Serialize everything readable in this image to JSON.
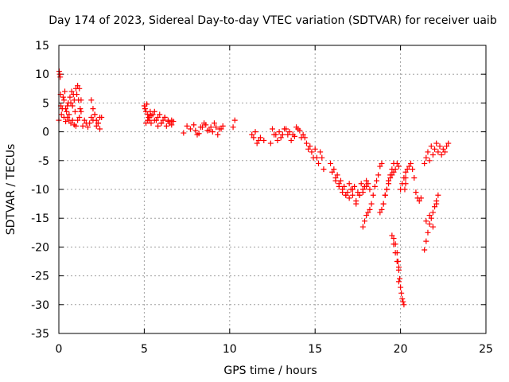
{
  "chart_data": {
    "type": "scatter",
    "title": "Day 174 of 2023, Sidereal Day-to-day VTEC variation (SDTVAR) for receiver uaib",
    "xlabel": "GPS time / hours",
    "ylabel": "SDTVAR / TECUs",
    "xlim": [
      0,
      25
    ],
    "ylim": [
      -35,
      15
    ],
    "xticks": [
      0,
      5,
      10,
      15,
      20,
      25
    ],
    "yticks": [
      -35,
      -30,
      -25,
      -20,
      -15,
      -10,
      -5,
      0,
      5,
      10,
      15
    ],
    "xtick_labels": [
      "0",
      "5",
      "10",
      "15",
      "20",
      "25"
    ],
    "ytick_labels": [
      "-35",
      "-30",
      "-25",
      "-20",
      "-15",
      "-10",
      "-5",
      "0",
      "5",
      "10",
      "15"
    ],
    "grid": true,
    "marker": "+",
    "color": "#ff0000",
    "series": [
      {
        "name": "uaib",
        "x": [
          0.0,
          0.02,
          0.05,
          0.08,
          0.1,
          0.12,
          0.15,
          0.2,
          0.25,
          0.3,
          0.35,
          0.4,
          0.45,
          0.5,
          0.55,
          0.6,
          0.65,
          0.7,
          0.75,
          0.8,
          0.85,
          0.9,
          0.95,
          1.0,
          1.05,
          1.1,
          1.15,
          1.2,
          1.25,
          1.3,
          0.3,
          0.4,
          0.5,
          0.6,
          0.7,
          0.8,
          0.9,
          1.0,
          1.1,
          1.2,
          1.3,
          1.4,
          1.5,
          1.6,
          1.7,
          1.8,
          1.9,
          2.0,
          2.1,
          2.2,
          2.3,
          2.4,
          1.9,
          2.0,
          2.1,
          2.2,
          2.3,
          2.4,
          2.5,
          5.0,
          5.05,
          5.1,
          5.15,
          5.2,
          5.25,
          5.3,
          5.35,
          5.4,
          5.5,
          5.6,
          5.7,
          5.8,
          5.9,
          6.0,
          6.1,
          6.2,
          6.3,
          6.4,
          6.5,
          6.6,
          6.7,
          5.1,
          5.2,
          5.3,
          5.4,
          5.6,
          5.8,
          6.0,
          6.2,
          6.4,
          6.6,
          7.3,
          7.5,
          7.7,
          7.9,
          8.1,
          8.3,
          8.5,
          8.7,
          8.9,
          9.1,
          9.3,
          9.5,
          8.0,
          8.2,
          8.4,
          8.6,
          8.8,
          9.0,
          9.2,
          9.4,
          9.6,
          10.2,
          10.3,
          11.3,
          11.4,
          11.5,
          11.6,
          11.7,
          11.8,
          12.0,
          12.4,
          12.6,
          12.8,
          13.0,
          13.2,
          13.4,
          13.6,
          13.8,
          14.0,
          14.2,
          12.5,
          12.7,
          12.9,
          13.1,
          13.3,
          13.5,
          13.7,
          13.9,
          14.1,
          14.3,
          14.4,
          14.5,
          14.6,
          14.7,
          14.8,
          14.9,
          15.0,
          15.1,
          15.2,
          15.3,
          15.4,
          15.5,
          15.9,
          16.0,
          16.1,
          16.2,
          16.3,
          16.4,
          16.5,
          16.6,
          16.7,
          16.8,
          16.9,
          17.0,
          17.1,
          17.2,
          17.3,
          17.4,
          17.5,
          17.6,
          17.7,
          17.8,
          17.9,
          18.0,
          18.1,
          18.2,
          16.2,
          16.4,
          16.6,
          16.8,
          17.0,
          17.2,
          17.4,
          17.6,
          17.8,
          18.0,
          17.8,
          17.9,
          18.0,
          18.1,
          18.2,
          18.3,
          18.4,
          18.5,
          18.6,
          18.7,
          18.8,
          18.9,
          19.0,
          19.1,
          19.2,
          19.3,
          19.4,
          19.5,
          19.6,
          18.8,
          18.9,
          19.0,
          19.1,
          19.2,
          19.3,
          19.4,
          19.5,
          19.6,
          19.7,
          19.8,
          19.9,
          19.5,
          19.6,
          19.7,
          19.8,
          19.9,
          20.0,
          20.1,
          20.2,
          20.3,
          20.4,
          20.5,
          20.6,
          20.7,
          20.8,
          20.9,
          21.0,
          21.1,
          21.2,
          19.6,
          19.7,
          19.8,
          19.85,
          19.9,
          19.95,
          19.9,
          20.0,
          20.05,
          20.1,
          20.15,
          20.2,
          20.25,
          20.3,
          20.3,
          21.4,
          21.5,
          21.6,
          21.7,
          21.8,
          21.9,
          22.0,
          22.1,
          22.2,
          21.5,
          21.7,
          21.9,
          22.1,
          21.4,
          21.5,
          21.6,
          21.7,
          21.8,
          21.9,
          22.0,
          22.1,
          22.2,
          22.3,
          22.4,
          22.5,
          22.6,
          22.7,
          22.8
        ],
        "y": [
          2.0,
          10.5,
          10.0,
          9.5,
          6.5,
          4.5,
          3.0,
          4.0,
          6.0,
          5.5,
          7.0,
          4.0,
          3.5,
          4.5,
          5.0,
          3.0,
          6.0,
          5.0,
          7.0,
          4.5,
          6.5,
          5.5,
          3.5,
          7.5,
          6.5,
          8.0,
          5.5,
          7.5,
          4.0,
          5.5,
          2.5,
          1.8,
          2.5,
          2.0,
          1.5,
          2.0,
          1.2,
          1.0,
          2.0,
          2.5,
          3.5,
          1.0,
          2.0,
          1.5,
          0.8,
          1.5,
          2.5,
          2.0,
          3.0,
          2.0,
          1.5,
          2.5,
          5.5,
          4.0,
          3.0,
          1.0,
          1.5,
          0.5,
          2.5,
          4.5,
          4.0,
          3.5,
          4.8,
          3.0,
          2.5,
          2.0,
          3.5,
          2.8,
          3.0,
          3.5,
          2.0,
          2.5,
          3.0,
          1.5,
          2.0,
          2.5,
          1.0,
          2.0,
          1.5,
          2.0,
          1.8,
          1.5,
          2.0,
          2.5,
          1.5,
          2.0,
          1.0,
          1.5,
          2.5,
          1.8,
          1.2,
          -0.2,
          1.0,
          0.5,
          1.2,
          -0.5,
          0.8,
          1.5,
          0.2,
          0.8,
          1.5,
          -0.5,
          0.5,
          0.2,
          -0.3,
          0.8,
          1.2,
          0.3,
          0.0,
          0.8,
          0.5,
          1.0,
          0.8,
          2.0,
          -0.5,
          -1.0,
          0.0,
          -2.0,
          -1.5,
          -1.0,
          -1.5,
          -2.0,
          -0.5,
          -1.5,
          -1.0,
          0.5,
          -0.5,
          -1.5,
          -0.8,
          0.5,
          -1.0,
          0.5,
          -0.5,
          0.0,
          -0.5,
          0.5,
          0.0,
          -0.5,
          0.8,
          0.2,
          -0.5,
          -1.0,
          -2.0,
          -3.0,
          -2.5,
          -3.5,
          -4.5,
          -3.0,
          -4.5,
          -5.5,
          -3.5,
          -4.5,
          -6.5,
          -5.5,
          -7.0,
          -6.5,
          -8.0,
          -7.5,
          -9.0,
          -8.5,
          -10.0,
          -9.5,
          -11.0,
          -10.5,
          -11.5,
          -10.0,
          -11.0,
          -9.5,
          -12.0,
          -10.5,
          -11.0,
          -9.0,
          -10.0,
          -9.5,
          -8.5,
          -9.0,
          -10.0,
          -8.5,
          -9.5,
          -10.5,
          -11.0,
          -9.0,
          -10.0,
          -12.5,
          -11.0,
          -10.5,
          -9.5,
          -16.5,
          -15.5,
          -14.5,
          -14.0,
          -13.5,
          -12.5,
          -11.0,
          -9.5,
          -8.5,
          -7.5,
          -6.0,
          -5.5,
          -12.5,
          -11.0,
          -10.0,
          -8.5,
          -7.5,
          -6.5,
          -5.5,
          -14.0,
          -13.5,
          -12.5,
          -11.0,
          -10.0,
          -9.0,
          -8.0,
          -7.5,
          -7.0,
          -6.5,
          -5.5,
          -6.0,
          -18.0,
          -19.5,
          -21.0,
          -22.5,
          -23.5,
          -10.0,
          -9.0,
          -8.0,
          -7.0,
          -6.5,
          -6.0,
          -5.5,
          -6.5,
          -8.0,
          -10.5,
          -11.5,
          -12.0,
          -11.5,
          -18.5,
          -19.5,
          -21.0,
          -22.5,
          -24.0,
          -25.5,
          -26.0,
          -27.0,
          -28.0,
          -29.0,
          -29.5,
          -30.0,
          -10.0,
          -9.0,
          -8.0,
          -20.5,
          -19.0,
          -17.5,
          -16.0,
          -15.0,
          -14.0,
          -13.0,
          -12.0,
          -11.0,
          -15.5,
          -14.5,
          -16.5,
          -12.5,
          -5.5,
          -4.5,
          -3.5,
          -5.0,
          -2.5,
          -4.0,
          -3.0,
          -2.0,
          -3.5,
          -2.5,
          -4.0,
          -3.0,
          -3.5,
          -2.5,
          -2.0
        ]
      }
    ]
  }
}
